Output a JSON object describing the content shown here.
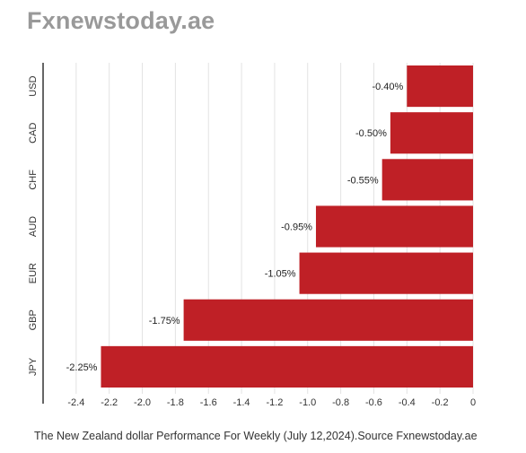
{
  "header": {
    "brand": "Fxnewstoday.ae"
  },
  "caption": "The New Zealand dollar Performance For Weekly (July 12,2024).Source Fxnewstoday.ae",
  "colors": {
    "bar": "#bf2026",
    "grid": "#e3e3e3",
    "axis": "#333333",
    "brand": "#999999"
  },
  "chart_data": {
    "type": "bar",
    "orientation": "horizontal",
    "categories": [
      "USD",
      "CAD",
      "CHF",
      "AUD",
      "EUR",
      "GBP",
      "JPY"
    ],
    "values": [
      -0.4,
      -0.5,
      -0.55,
      -0.95,
      -1.05,
      -1.75,
      -2.25
    ],
    "data_labels": [
      "-0.40%",
      "-0.50%",
      "-0.55%",
      "-0.95%",
      "-1.05%",
      "-1.75%",
      "-2.25%"
    ],
    "xlim": [
      -2.6,
      0
    ],
    "xticks": [
      -2.4,
      -2.2,
      -2.0,
      -1.8,
      -1.6,
      -1.4,
      -1.2,
      -1.0,
      -0.8,
      -0.6,
      -0.4,
      -0.2,
      0
    ],
    "xtick_labels": [
      "-2.4",
      "-2.2",
      "-2.0",
      "-1.8",
      "-1.6",
      "-1.4",
      "-1.2",
      "-1.0",
      "-0.8",
      "-0.6",
      "-0.4",
      "-0.2",
      "0"
    ],
    "title": "",
    "xlabel": "",
    "ylabel": "",
    "grid": true,
    "legend": "none"
  }
}
